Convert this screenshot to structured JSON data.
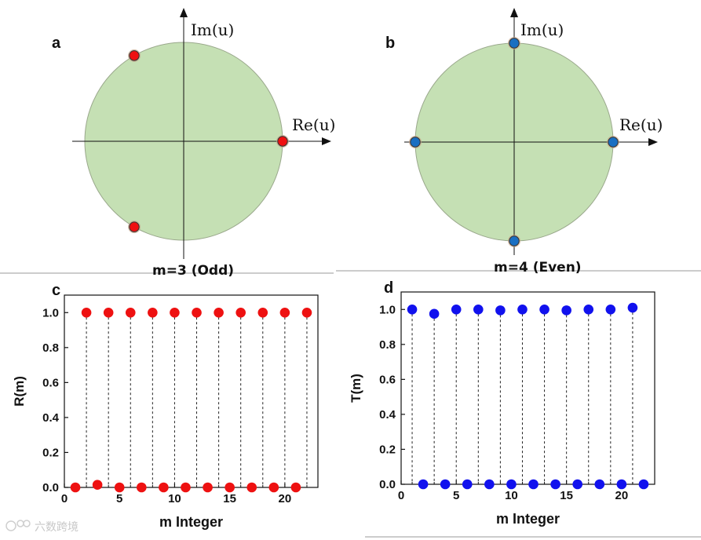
{
  "colors": {
    "disk_fill": "#c5e0b4",
    "disk_stroke": "#9aa88c",
    "odd_marker": "#ee1111",
    "even_marker": "#1a6fc2",
    "r_marker": "#ee1111",
    "t_marker": "#1111ee"
  },
  "panels": {
    "a": {
      "letter": "a",
      "im_label": "Im(u)",
      "re_label": "Re(u)",
      "caption": "m=3 (Odd)"
    },
    "b": {
      "letter": "b",
      "im_label": "Im(u)",
      "re_label": "Re(u)",
      "caption": "m=4 (Even)"
    },
    "c": {
      "letter": "c"
    },
    "d": {
      "letter": "d"
    }
  },
  "watermark": "六数跨境",
  "chart_data": [
    {
      "id": "a",
      "type": "scatter",
      "title": "m=3 (Odd)",
      "xlabel": "Re(u)",
      "ylabel": "Im(u)",
      "description": "unit circle with points",
      "points_angle_deg": [
        0,
        120,
        240
      ]
    },
    {
      "id": "b",
      "type": "scatter",
      "title": "m=4 (Even)",
      "xlabel": "Re(u)",
      "ylabel": "Im(u)",
      "points_angle_deg": [
        0,
        90,
        180,
        270
      ]
    },
    {
      "id": "c",
      "type": "scatter",
      "xlabel": "m Integer",
      "ylabel": "R(m)",
      "xlim": [
        0,
        23
      ],
      "ylim": [
        0,
        1.1
      ],
      "xticks": [
        "0",
        "5",
        "10",
        "15",
        "20"
      ],
      "yticks": [
        "0.0",
        "0.2",
        "0.4",
        "0.6",
        "0.8",
        "1.0"
      ],
      "x": [
        1,
        2,
        3,
        4,
        5,
        6,
        7,
        8,
        9,
        10,
        11,
        12,
        13,
        14,
        15,
        16,
        17,
        18,
        19,
        20,
        21,
        22
      ],
      "y": [
        0,
        1,
        0.015,
        1,
        0,
        1,
        0,
        1,
        0,
        1,
        0,
        1,
        0,
        1,
        0,
        1,
        0,
        1,
        0,
        1,
        0,
        1
      ]
    },
    {
      "id": "d",
      "type": "scatter",
      "xlabel": "m Integer",
      "ylabel": "T(m)",
      "xlim": [
        0,
        23
      ],
      "ylim": [
        0,
        1.1
      ],
      "xticks": [
        "0",
        "5",
        "10",
        "15",
        "20"
      ],
      "yticks": [
        "0.0",
        "0.2",
        "0.4",
        "0.6",
        "0.8",
        "1.0"
      ],
      "x": [
        1,
        2,
        3,
        4,
        5,
        6,
        7,
        8,
        9,
        10,
        11,
        12,
        13,
        14,
        15,
        16,
        17,
        18,
        19,
        20,
        21,
        22
      ],
      "y": [
        1,
        0,
        0.975,
        0,
        1,
        0,
        1,
        0,
        0.995,
        0,
        1,
        0,
        1,
        0,
        0.995,
        0,
        1,
        0,
        1,
        0,
        1.01,
        0
      ]
    }
  ]
}
